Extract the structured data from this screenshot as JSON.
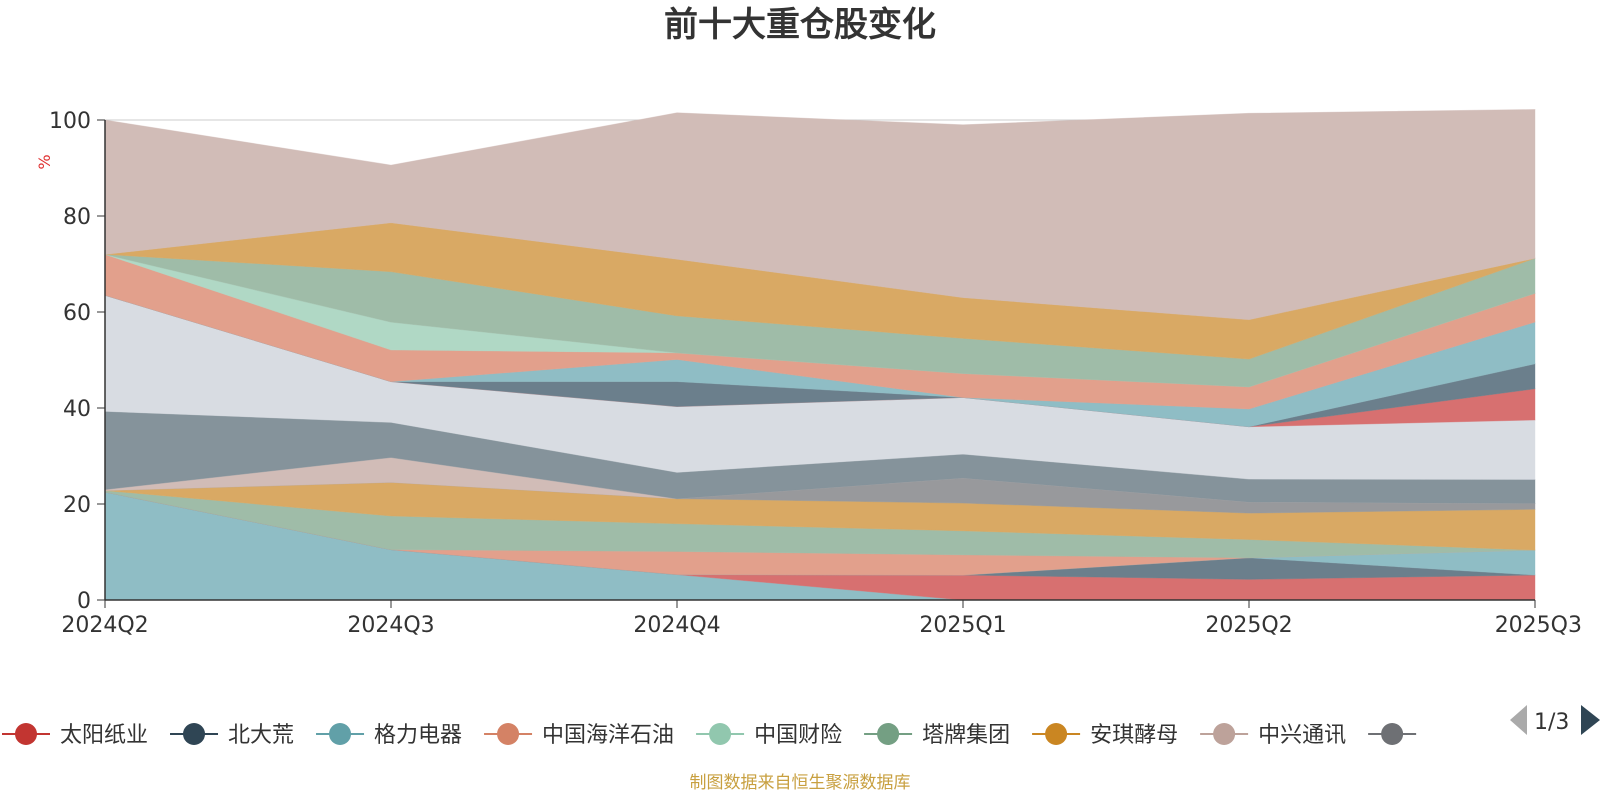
{
  "chart_data": {
    "type": "area",
    "stacked": true,
    "title": "前十大重仓股变化",
    "ylabel": "%",
    "ylim": [
      0,
      100
    ],
    "yticks": [
      "0",
      "20",
      "40",
      "60",
      "80",
      "100"
    ],
    "categories": [
      "2024Q2",
      "2024Q3",
      "2024Q4",
      "2025Q1",
      "2025Q2",
      "2025Q3"
    ],
    "grid": true,
    "series": [
      {
        "name": "",
        "color": "#8fbdc5",
        "values": [
          22.5,
          10.5,
          5.3,
          0,
          0,
          0
        ]
      },
      {
        "name": "",
        "color": "#d77070",
        "values": [
          0,
          0,
          0,
          5.2,
          4.3,
          5.2
        ]
      },
      {
        "name": "",
        "color": "#6b7f8c",
        "values": [
          0,
          0,
          0,
          0,
          4.5,
          0
        ]
      },
      {
        "name": "",
        "color": "#8fbdc5",
        "values": [
          0,
          0,
          0,
          0,
          0,
          5.2
        ]
      },
      {
        "name": "",
        "color": "#e2a08c",
        "values": [
          0,
          0,
          4.8,
          4.2,
          0,
          0
        ]
      },
      {
        "name": "",
        "color": "#9fbca8",
        "values": [
          0.3,
          7.0,
          5.8,
          5.0,
          3.8,
          0
        ]
      },
      {
        "name": "",
        "color": "#d9a964",
        "values": [
          0,
          7.0,
          5.2,
          5.8,
          5.5,
          8.5
        ]
      },
      {
        "name": "",
        "color": "#98999c",
        "values": [
          0,
          0,
          0,
          5.2,
          2.3,
          1.2
        ]
      },
      {
        "name": "",
        "color": "#d1bcb7",
        "values": [
          0.2,
          5.2,
          0,
          0,
          0,
          0
        ]
      },
      {
        "name": "",
        "color": "#85939b",
        "values": [
          16.3,
          7.3,
          5.5,
          5.0,
          4.8,
          5.0
        ]
      },
      {
        "name": "",
        "color": "#d8dce2",
        "values": [
          24.2,
          8.5,
          13.7,
          11.8,
          10.9,
          12.4
        ]
      },
      {
        "name": "",
        "color": "#d77070",
        "values": [
          0,
          0,
          0,
          0,
          0,
          6.5
        ]
      },
      {
        "name": "",
        "color": "#6b7f8c",
        "values": [
          0,
          0,
          5.2,
          0,
          0,
          5.2
        ]
      },
      {
        "name": "",
        "color": "#8fbdc5",
        "values": [
          0,
          0,
          4.6,
          0,
          3.7,
          8.7
        ]
      },
      {
        "name": "",
        "color": "#e2a08c",
        "values": [
          8.5,
          6.6,
          1.4,
          5.0,
          4.6,
          6.0
        ]
      },
      {
        "name": "",
        "color": "#b0d8c5",
        "values": [
          0,
          5.8,
          0,
          0,
          0,
          0
        ]
      },
      {
        "name": "",
        "color": "#9fbca8",
        "values": [
          0,
          10.5,
          7.7,
          7.3,
          5.8,
          7.3
        ]
      },
      {
        "name": "",
        "color": "#d9a964",
        "values": [
          0,
          10.2,
          11.8,
          8.5,
          8.2,
          0
        ]
      },
      {
        "name": "",
        "color": "#d1bcb7",
        "values": [
          28.0,
          12.0,
          30.5,
          36.0,
          43.0,
          31.0
        ]
      }
    ]
  },
  "legend": {
    "items": [
      {
        "name": "太阳纸业",
        "color": "#c23531"
      },
      {
        "name": "北大荒",
        "color": "#2f4554"
      },
      {
        "name": "格力电器",
        "color": "#61a0a8"
      },
      {
        "name": "中国海洋石油",
        "color": "#d48265"
      },
      {
        "name": "中国财险",
        "color": "#91c7ae"
      },
      {
        "name": "塔牌集团",
        "color": "#749f83"
      },
      {
        "name": "安琪酵母",
        "color": "#ca8622"
      },
      {
        "name": "中兴通讯",
        "color": "#bda29a"
      },
      {
        "name": "",
        "color": "#6e7074"
      }
    ],
    "page": "1/3"
  },
  "source": "制图数据来自恒生聚源数据库",
  "colors": {
    "unit": "#e03030",
    "source": "#c8a040",
    "axis": "#333333",
    "grid": "#cccccc"
  }
}
